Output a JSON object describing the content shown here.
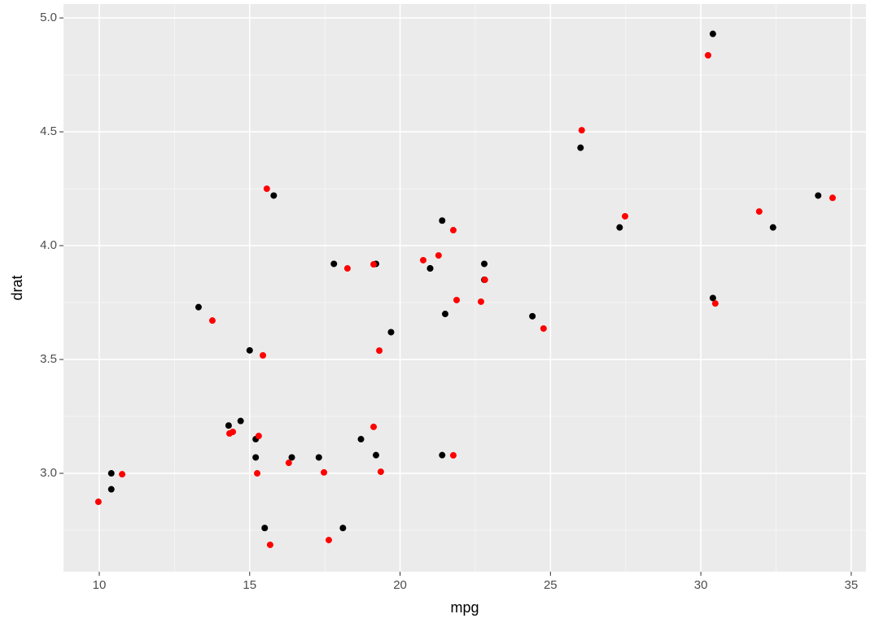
{
  "chart_data": {
    "type": "scatter",
    "x_label": "mpg",
    "y_label": "drat",
    "xlim": [
      8.81,
      35.49
    ],
    "ylim": [
      2.568,
      5.061
    ],
    "xticks": [
      10,
      15,
      20,
      25,
      30,
      35
    ],
    "yticks": [
      {
        "value": 3.0,
        "label": "3.0"
      },
      {
        "value": 3.5,
        "label": "3.5"
      },
      {
        "value": 4.0,
        "label": "4.0"
      },
      {
        "value": 4.5,
        "label": "4.5"
      },
      {
        "value": 5.0,
        "label": "5.0"
      }
    ],
    "grid": true,
    "series": [
      {
        "color": "#000000",
        "x": [
          21.0,
          21.0,
          22.8,
          21.4,
          18.7,
          18.1,
          14.3,
          24.4,
          22.8,
          19.2,
          17.8,
          16.4,
          17.3,
          15.2,
          10.4,
          10.4,
          14.7,
          32.4,
          30.4,
          33.9,
          21.5,
          15.5,
          15.2,
          13.3,
          19.2,
          27.3,
          26.0,
          30.4,
          15.8,
          19.7,
          15.0,
          21.4
        ],
        "values": [
          3.9,
          3.9,
          3.85,
          3.08,
          3.15,
          2.76,
          3.21,
          3.69,
          3.92,
          3.92,
          3.92,
          3.07,
          3.07,
          3.07,
          2.93,
          3.0,
          3.23,
          4.08,
          4.93,
          4.22,
          3.7,
          2.76,
          3.15,
          3.73,
          3.08,
          4.08,
          4.43,
          3.77,
          4.22,
          3.62,
          3.54,
          4.11
        ]
      },
      {
        "color": "#ff0000",
        "x": [
          9.97,
          10.76,
          13.76,
          14.33,
          14.44,
          15.3,
          15.25,
          15.44,
          15.57,
          15.68,
          16.3,
          17.47,
          17.63,
          18.25,
          19.12,
          19.12,
          19.31,
          19.36,
          20.77,
          21.28,
          21.77,
          21.77,
          21.88,
          22.69,
          22.82,
          24.77,
          26.04,
          27.48,
          30.24,
          30.48,
          31.94,
          34.38
        ],
        "values": [
          2.875,
          2.996,
          3.671,
          3.175,
          3.182,
          3.164,
          3.0,
          3.518,
          4.25,
          2.686,
          3.046,
          3.004,
          2.707,
          3.9,
          3.918,
          3.204,
          3.539,
          3.007,
          3.936,
          3.957,
          4.068,
          3.079,
          3.761,
          3.754,
          3.85,
          3.636,
          4.507,
          4.129,
          4.836,
          3.746,
          4.15,
          4.21
        ]
      }
    ]
  }
}
